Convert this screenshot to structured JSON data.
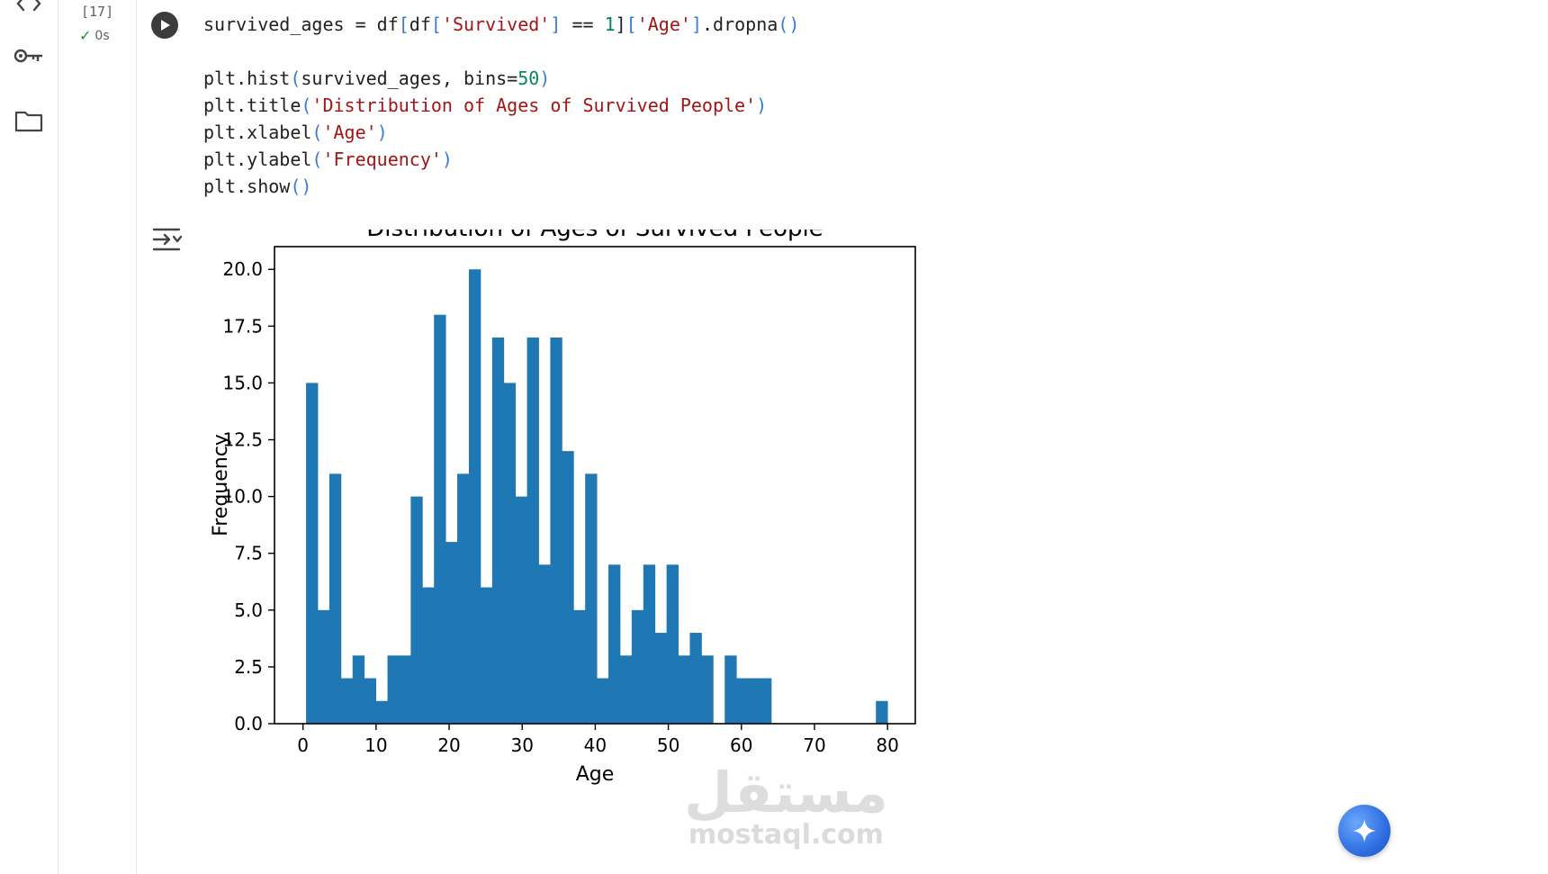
{
  "cell": {
    "execution_count": "[17]",
    "exec_time": "0s",
    "code_lines": [
      [
        {
          "t": "survived_ages = df",
          "c": ""
        },
        {
          "t": "[",
          "c": "p"
        },
        {
          "t": "df",
          "c": ""
        },
        {
          "t": "[",
          "c": "p"
        },
        {
          "t": "'Survived'",
          "c": "s"
        },
        {
          "t": "]",
          "c": "p"
        },
        {
          "t": " == ",
          "c": ""
        },
        {
          "t": "1",
          "c": "n"
        },
        {
          "t": "]",
          "c": ""
        },
        {
          "t": "[",
          "c": "p"
        },
        {
          "t": "'Age'",
          "c": "s"
        },
        {
          "t": "]",
          "c": "p"
        },
        {
          "t": ".dropna",
          "c": ""
        },
        {
          "t": "()",
          "c": "p"
        }
      ],
      [],
      [
        {
          "t": "plt.hist",
          "c": ""
        },
        {
          "t": "(",
          "c": "p"
        },
        {
          "t": "survived_ages, bins=",
          "c": ""
        },
        {
          "t": "50",
          "c": "n"
        },
        {
          "t": ")",
          "c": "p"
        }
      ],
      [
        {
          "t": "plt.title",
          "c": ""
        },
        {
          "t": "(",
          "c": "p"
        },
        {
          "t": "'Distribution of Ages of Survived People'",
          "c": "s"
        },
        {
          "t": ")",
          "c": "p"
        }
      ],
      [
        {
          "t": "plt.xlabel",
          "c": ""
        },
        {
          "t": "(",
          "c": "p"
        },
        {
          "t": "'Age'",
          "c": "s"
        },
        {
          "t": ")",
          "c": "p"
        }
      ],
      [
        {
          "t": "plt.ylabel",
          "c": ""
        },
        {
          "t": "(",
          "c": "p"
        },
        {
          "t": "'Frequency'",
          "c": "s"
        },
        {
          "t": ")",
          "c": "p"
        }
      ],
      [
        {
          "t": "plt.show",
          "c": ""
        },
        {
          "t": "()",
          "c": "p"
        }
      ]
    ]
  },
  "sidebar": {
    "icons": [
      "code-icon",
      "key-icon",
      "folder-icon"
    ]
  },
  "output": {
    "icon": "output-toggle-icon"
  },
  "chart_data": {
    "type": "bar",
    "title": "Distribution of Ages of Survived People",
    "xlabel": "Age",
    "ylabel": "Frequency",
    "xlim": [
      -3.9,
      83.8
    ],
    "ylim": [
      0,
      21
    ],
    "xticks": [
      0,
      10,
      20,
      30,
      40,
      50,
      60,
      70,
      80
    ],
    "xtick_labels": [
      "0",
      "10",
      "20",
      "30",
      "40",
      "50",
      "60",
      "70",
      "80"
    ],
    "yticks": [
      0,
      2.5,
      5,
      7.5,
      10,
      12.5,
      15,
      17.5,
      20
    ],
    "ytick_labels": [
      "0.0",
      "2.5",
      "5.0",
      "7.5",
      "10.0",
      "12.5",
      "15.0",
      "17.5",
      "20.0"
    ],
    "bin_start": 0.42,
    "bin_width": 1.5916,
    "counts": [
      15,
      5,
      11,
      2,
      3,
      2,
      1,
      3,
      3,
      10,
      6,
      18,
      8,
      11,
      20,
      6,
      17,
      15,
      10,
      17,
      7,
      17,
      12,
      5,
      11,
      2,
      7,
      3,
      5,
      7,
      4,
      7,
      3,
      4,
      3,
      0,
      3,
      2,
      2,
      2,
      0,
      0,
      0,
      0,
      0,
      0,
      0,
      0,
      0,
      1
    ],
    "bar_color": "#1f77b4"
  },
  "watermark": {
    "arabic": "مستقل",
    "latin": "mostaql.com"
  }
}
